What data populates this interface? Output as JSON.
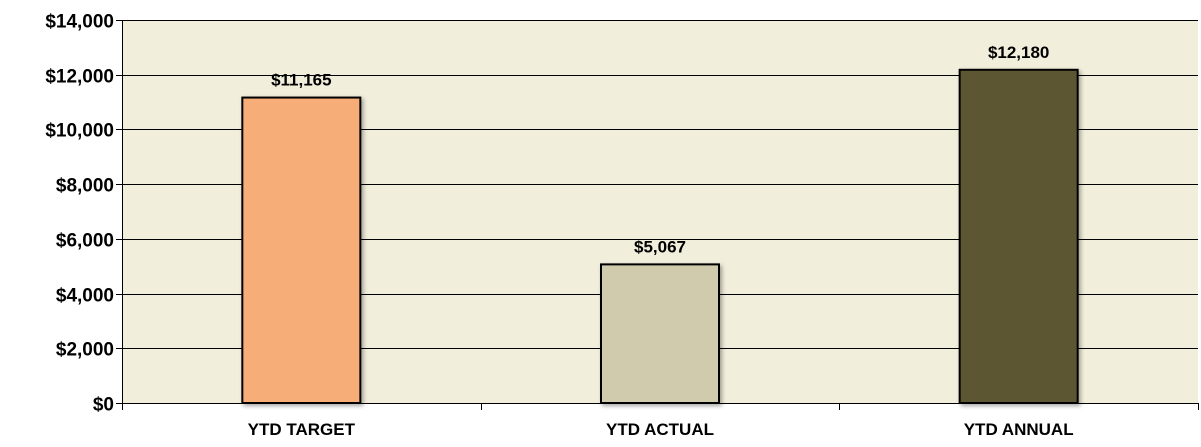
{
  "chart_data": {
    "type": "bar",
    "title": "",
    "xlabel": "",
    "ylabel": "",
    "categories": [
      "YTD TARGET",
      "YTD ACTUAL",
      "YTD ANNUAL"
    ],
    "values": [
      11165,
      5067,
      12180
    ],
    "data_labels": [
      "$11,165",
      "$5,067",
      "$12,180"
    ],
    "ylim": [
      0,
      14000
    ],
    "yticks": [
      0,
      2000,
      4000,
      6000,
      8000,
      10000,
      12000,
      14000
    ],
    "ytick_labels": [
      "$0",
      "$2,000",
      "$4,000",
      "$6,000",
      "$8,000",
      "$10,000",
      "$12,000",
      "$14,000"
    ],
    "grid": true,
    "legend": "none",
    "colors": {
      "plot_background": "#f2eedc",
      "bars": [
        "#f7ad78",
        "#d1cbae",
        "#5d5733"
      ],
      "bar_outline": "#000000",
      "gridline": "#000000"
    }
  }
}
